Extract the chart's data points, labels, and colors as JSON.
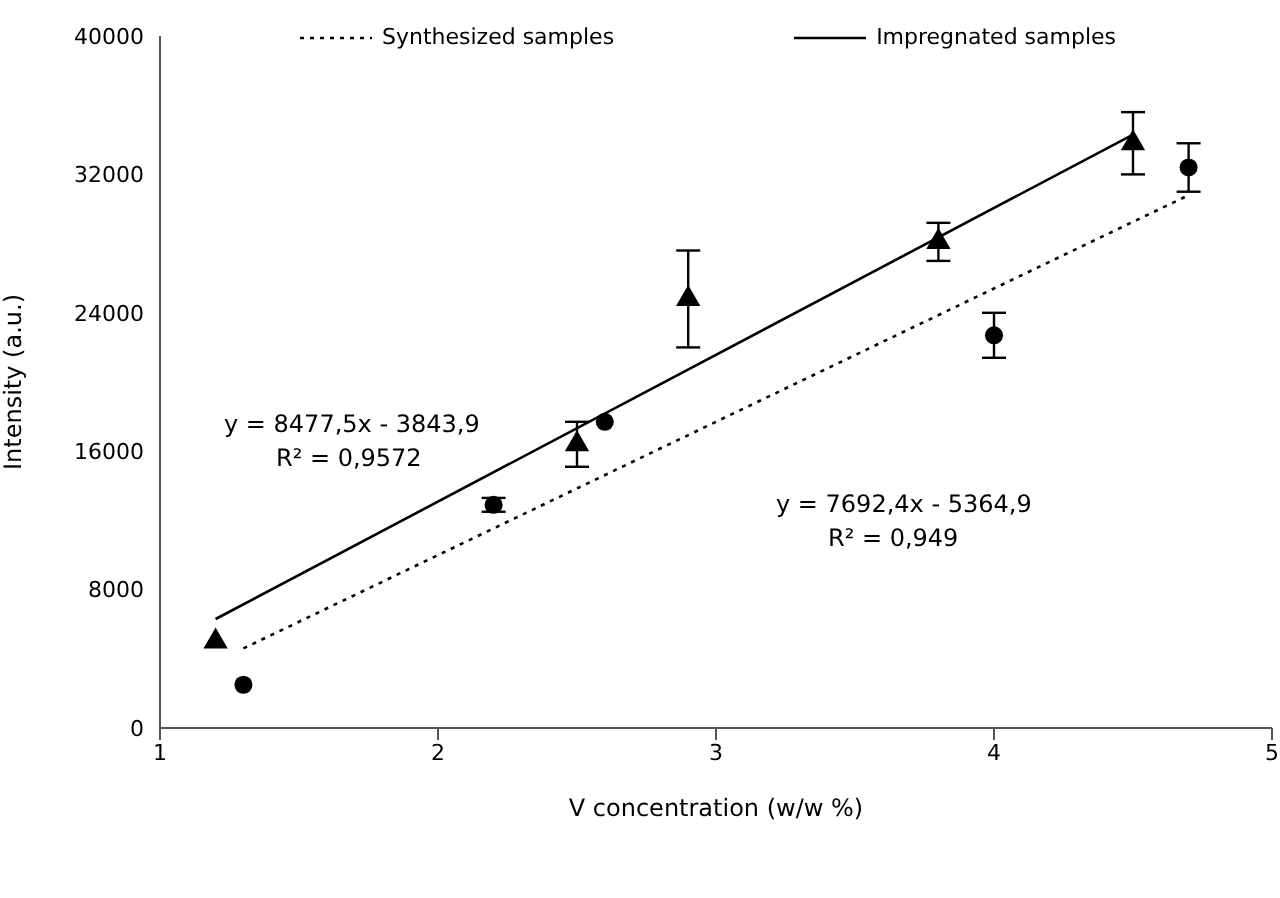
{
  "chart_data": {
    "type": "scatter",
    "xlabel": "V concentration (w/w %)",
    "ylabel": "Intensity (a.u.)",
    "xlim": [
      1,
      5
    ],
    "xticks": [
      1,
      2,
      3,
      4,
      5
    ],
    "ylim": [
      0,
      40000
    ],
    "yticks": [
      0,
      8000,
      16000,
      24000,
      32000,
      40000
    ],
    "grid": false,
    "legend": "top",
    "series": [
      {
        "marker": "triangle",
        "color": "#000000",
        "x": [
          1.2,
          2.5,
          2.9,
          3.8,
          4.5
        ],
        "values": [
          5000,
          16400,
          24800,
          28100,
          33800
        ],
        "errors": [
          null,
          1300,
          2800,
          1100,
          1800
        ]
      },
      {
        "marker": "circle",
        "color": "#000000",
        "x": [
          1.3,
          2.2,
          2.6,
          4.0,
          4.7
        ],
        "values": [
          2500,
          12900,
          17700,
          22700,
          32400
        ],
        "errors": [
          null,
          400,
          null,
          1300,
          1400
        ]
      },
      {
        "type": "line",
        "name": "Synthesized samples",
        "line_style": "dotted",
        "marker": "none",
        "color": "#000000",
        "x": [
          1.3,
          4.7
        ],
        "values": [
          4600,
          30800
        ]
      },
      {
        "type": "line",
        "name": "Impregnated samples",
        "line_style": "solid",
        "marker": "none",
        "color": "#000000",
        "x": [
          1.2,
          4.5
        ],
        "values": [
          6300,
          34300
        ]
      }
    ],
    "annotations": [
      "y = 8477,5x - 3843,9",
      "R² = 0,9572",
      "y = 7692,4x - 5364,9",
      "R² = 0,949"
    ]
  }
}
